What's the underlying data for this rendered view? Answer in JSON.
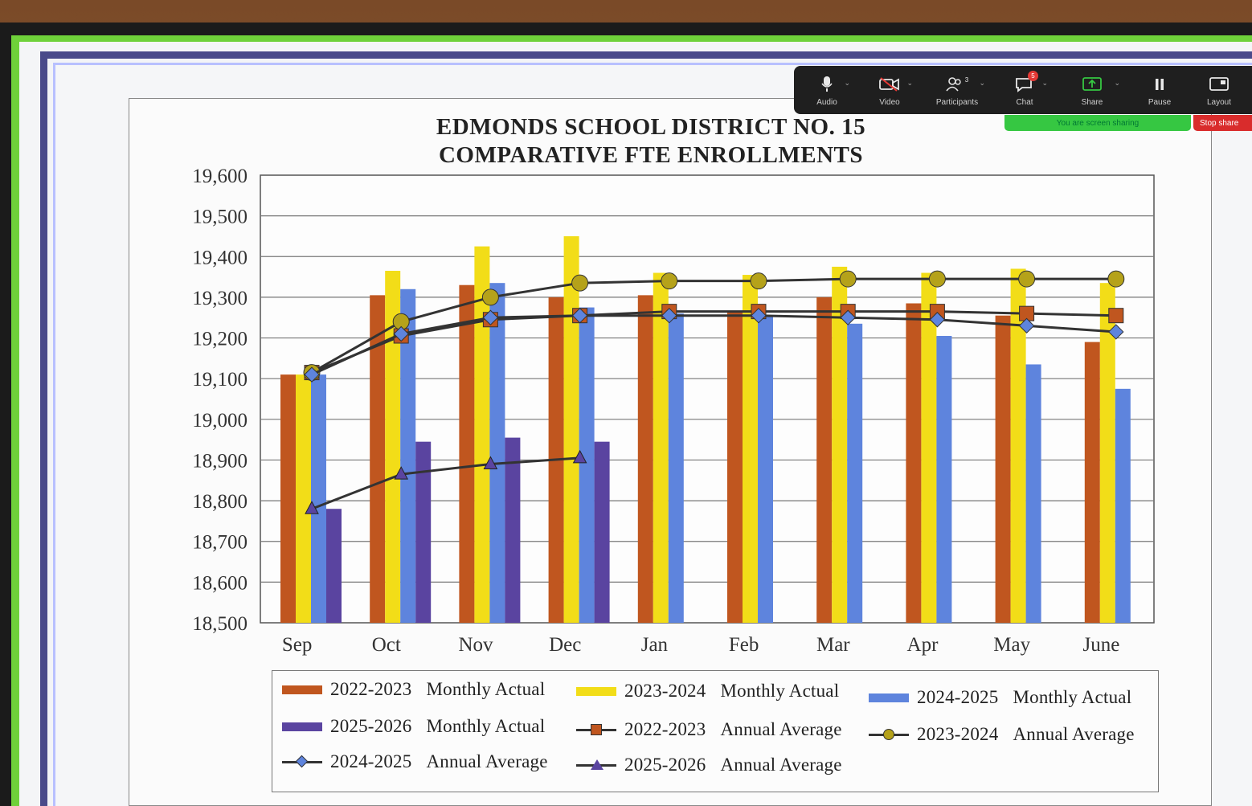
{
  "zoom_toolbar": {
    "buttons": [
      {
        "label": "Audio",
        "icon": "microphone-icon"
      },
      {
        "label": "Video",
        "icon": "video-camera-icon"
      },
      {
        "label": "Participants",
        "icon": "participants-icon",
        "count": "3"
      },
      {
        "label": "Chat",
        "icon": "chat-icon",
        "badge": "5"
      },
      {
        "label": "Share",
        "icon": "share-screen-icon"
      },
      {
        "label": "Pause",
        "icon": "pause-icon"
      },
      {
        "label": "Layout",
        "icon": "layout-icon"
      }
    ],
    "share_banner": "You are screen sharing",
    "stop_share": "Stop share",
    "colors": {
      "bar": "#1f1f1f",
      "banner": "#36c742",
      "stop": "#d92c2c",
      "badge": "#e53935"
    }
  },
  "chart_data": {
    "type": "bar",
    "title": "EDMONDS SCHOOL DISTRICT NO. 15",
    "subtitle": "COMPARATIVE FTE ENROLLMENTS",
    "categories": [
      "Sep",
      "Oct",
      "Nov",
      "Dec",
      "Jan",
      "Feb",
      "Mar",
      "Apr",
      "May",
      "June"
    ],
    "ylim": [
      18500,
      19600
    ],
    "yticks": [
      "19,600",
      "19,500",
      "19,400",
      "19,300",
      "19,200",
      "19,100",
      "19,000",
      "18,900",
      "18,800",
      "18,700",
      "18,600",
      "18,500"
    ],
    "grid": true,
    "legend_position": "bottom",
    "series": [
      {
        "name": "2022-2023 Monthly Actual",
        "kind": "bar",
        "color": "#c0561f",
        "values": [
          19110,
          19305,
          19330,
          19300,
          19305,
          19265,
          19300,
          19285,
          19255,
          19190
        ]
      },
      {
        "name": "2023-2024 Monthly Actual",
        "kind": "bar",
        "color": "#f2dd18",
        "values": [
          19110,
          19365,
          19425,
          19450,
          19360,
          19355,
          19375,
          19360,
          19370,
          19335
        ]
      },
      {
        "name": "2024-2025 Monthly Actual",
        "kind": "bar",
        "color": "#5e84dd",
        "values": [
          19110,
          19320,
          19335,
          19275,
          19260,
          19255,
          19235,
          19205,
          19135,
          19075
        ]
      },
      {
        "name": "2025-2026 Monthly Actual",
        "kind": "bar",
        "color": "#5a44a0",
        "values": [
          18780,
          18945,
          18955,
          18945,
          null,
          null,
          null,
          null,
          null,
          null
        ]
      },
      {
        "name": "2022-2023 Annual Average",
        "kind": "line",
        "marker": "square",
        "color": "#c0561f",
        "values": [
          19115,
          19205,
          19245,
          19255,
          19265,
          19265,
          19265,
          19265,
          19260,
          19255
        ]
      },
      {
        "name": "2023-2024 Annual Average",
        "kind": "line",
        "marker": "circle",
        "color": "#b5a21a",
        "values": [
          19115,
          19240,
          19300,
          19335,
          19340,
          19340,
          19345,
          19345,
          19345,
          19345
        ]
      },
      {
        "name": "2024-2025 Annual Average",
        "kind": "line",
        "marker": "diamond",
        "color": "#5e84dd",
        "values": [
          19110,
          19210,
          19250,
          19255,
          19255,
          19255,
          19250,
          19245,
          19230,
          19215
        ]
      },
      {
        "name": "2025-2026 Annual Average",
        "kind": "line",
        "marker": "triangle",
        "color": "#5a44a0",
        "values": [
          18780,
          18865,
          18890,
          18905,
          null,
          null,
          null,
          null,
          null,
          null
        ]
      }
    ],
    "legend": [
      {
        "year": "2022-2023",
        "label": "Monthly Actual"
      },
      {
        "year": "2023-2024",
        "label": "Monthly Actual"
      },
      {
        "year": "2024-2025",
        "label": "Monthly Actual"
      },
      {
        "year": "2025-2026",
        "label": "Monthly Actual"
      },
      {
        "year": "2022-2023",
        "label": "Annual Average"
      },
      {
        "year": "2023-2024",
        "label": "Annual Average"
      },
      {
        "year": "2024-2025",
        "label": "Annual Average"
      },
      {
        "year": "2025-2026",
        "label": "Annual Average"
      }
    ]
  }
}
